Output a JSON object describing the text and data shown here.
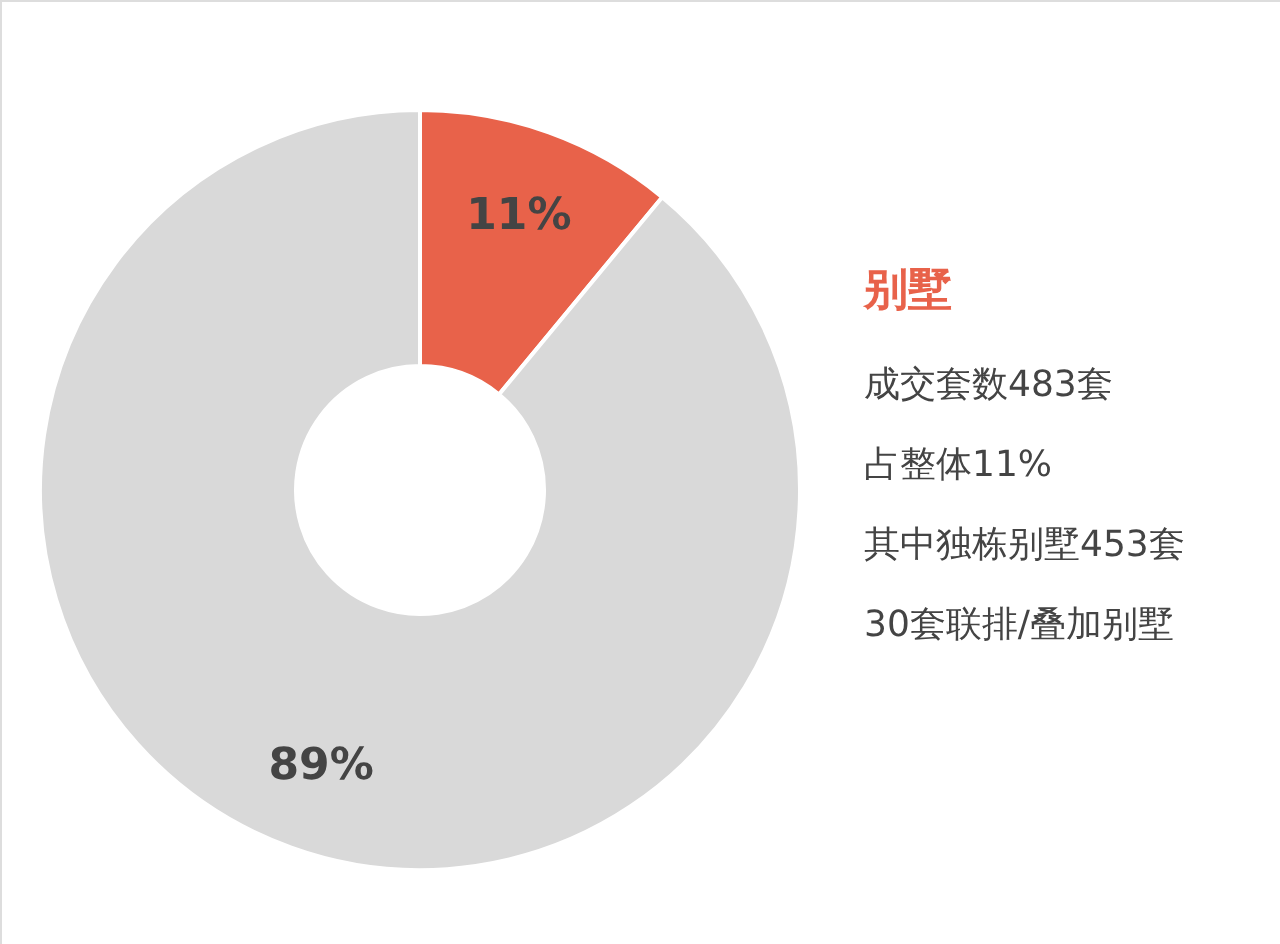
{
  "chart_data": {
    "type": "donut",
    "categories": [
      null,
      null
    ],
    "values": [
      11,
      89
    ],
    "colors": [
      "#e8624a",
      "#d9d9d9"
    ],
    "value_labels": [
      "11%",
      "89%"
    ],
    "annotations": [
      "别墅",
      "成交套数483套",
      "占整体11%",
      "其中独栋别墅453套",
      "30套联排/叠加别墅"
    ]
  }
}
